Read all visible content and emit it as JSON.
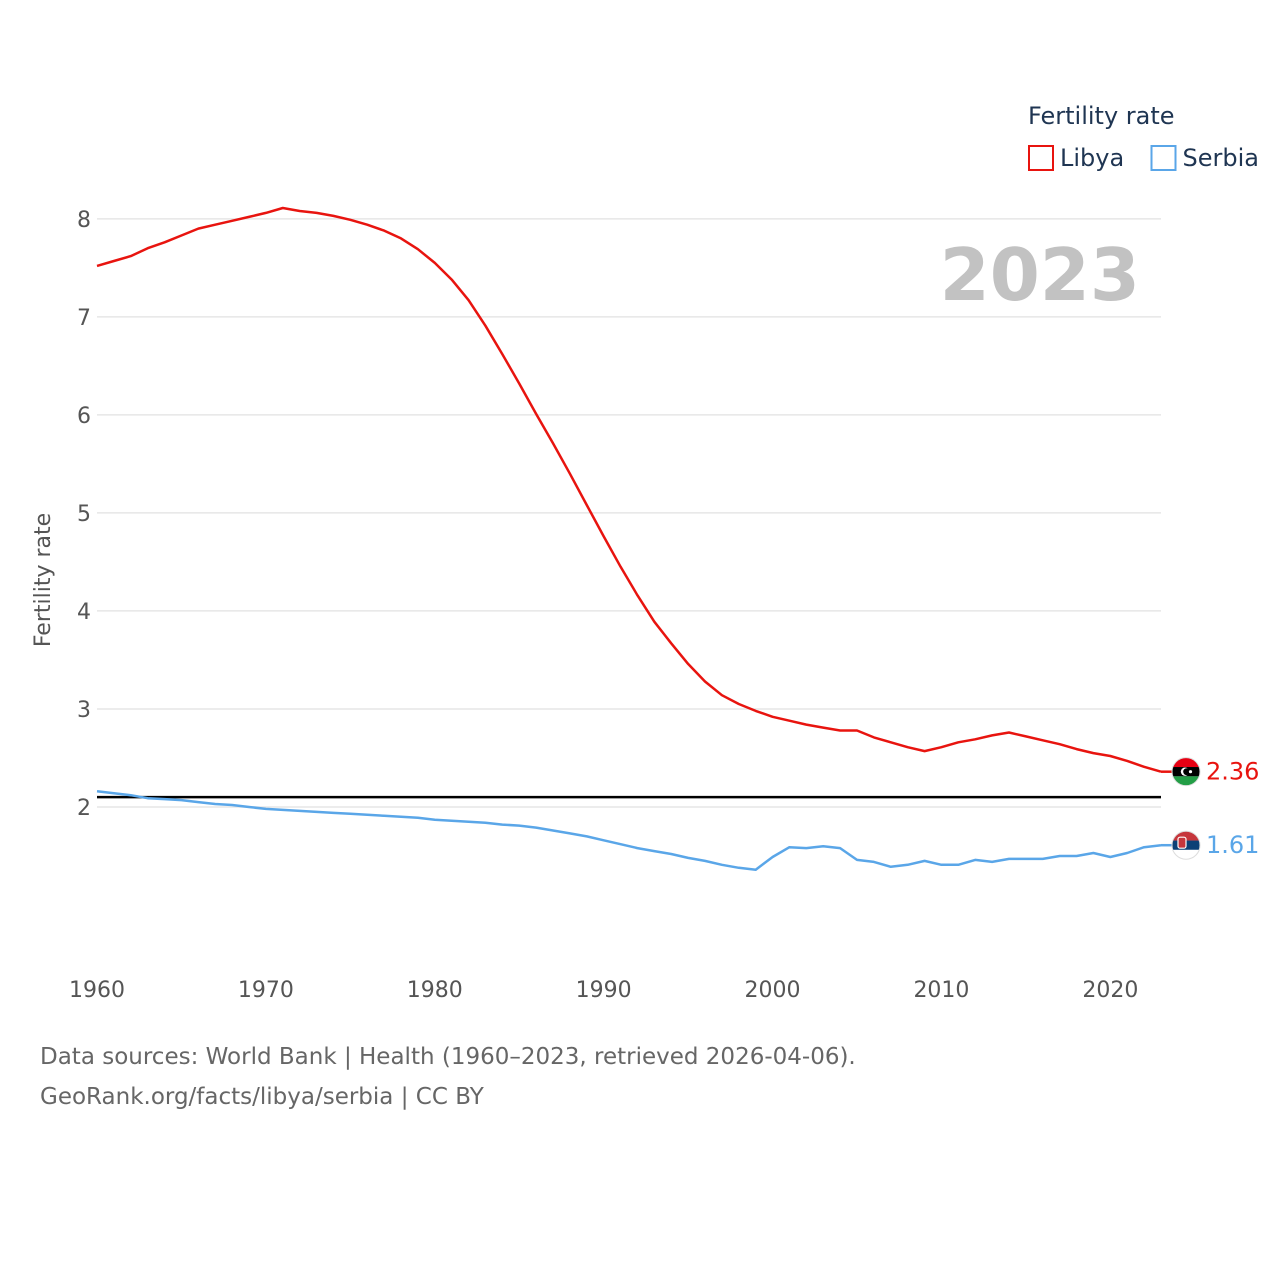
{
  "chart_data": {
    "type": "line",
    "title": "",
    "xlabel": "",
    "ylabel": "Fertility rate",
    "xlim": [
      1960,
      2023
    ],
    "ylim": [
      1.0,
      8.6
    ],
    "yticks": [
      2,
      3,
      4,
      5,
      6,
      7,
      8
    ],
    "xticks": [
      1960,
      1970,
      1980,
      1990,
      2000,
      2010,
      2020
    ],
    "current_year": "2023",
    "reference_line": 2.1,
    "legend": {
      "title": "Fertility rate",
      "position": "top-right"
    },
    "series": [
      {
        "name": "Libya",
        "color": "#e8140f",
        "end_label": "2.36",
        "x": [
          1960,
          1961,
          1962,
          1963,
          1964,
          1965,
          1966,
          1967,
          1968,
          1969,
          1970,
          1971,
          1972,
          1973,
          1974,
          1975,
          1976,
          1977,
          1978,
          1979,
          1980,
          1981,
          1982,
          1983,
          1984,
          1985,
          1986,
          1987,
          1988,
          1989,
          1990,
          1991,
          1992,
          1993,
          1994,
          1995,
          1996,
          1997,
          1998,
          1999,
          2000,
          2001,
          2002,
          2003,
          2004,
          2005,
          2006,
          2007,
          2008,
          2009,
          2010,
          2011,
          2012,
          2013,
          2014,
          2015,
          2016,
          2017,
          2018,
          2019,
          2020,
          2021,
          2022,
          2023
        ],
        "values": [
          7.52,
          7.57,
          7.62,
          7.7,
          7.76,
          7.83,
          7.9,
          7.94,
          7.98,
          8.02,
          8.06,
          8.11,
          8.08,
          8.06,
          8.03,
          7.99,
          7.94,
          7.88,
          7.8,
          7.69,
          7.55,
          7.38,
          7.17,
          6.91,
          6.62,
          6.32,
          6.01,
          5.71,
          5.4,
          5.08,
          4.76,
          4.45,
          4.16,
          3.89,
          3.67,
          3.46,
          3.28,
          3.14,
          3.05,
          2.98,
          2.92,
          2.88,
          2.84,
          2.81,
          2.78,
          2.78,
          2.71,
          2.66,
          2.61,
          2.57,
          2.61,
          2.66,
          2.69,
          2.73,
          2.76,
          2.72,
          2.68,
          2.64,
          2.59,
          2.55,
          2.52,
          2.47,
          2.41,
          2.36
        ]
      },
      {
        "name": "Serbia",
        "color": "#5aa6e8",
        "end_label": "1.61",
        "x": [
          1960,
          1961,
          1962,
          1963,
          1964,
          1965,
          1966,
          1967,
          1968,
          1969,
          1970,
          1971,
          1972,
          1973,
          1974,
          1975,
          1976,
          1977,
          1978,
          1979,
          1980,
          1981,
          1982,
          1983,
          1984,
          1985,
          1986,
          1987,
          1988,
          1989,
          1990,
          1991,
          1992,
          1993,
          1994,
          1995,
          1996,
          1997,
          1998,
          1999,
          2000,
          2001,
          2002,
          2003,
          2004,
          2005,
          2006,
          2007,
          2008,
          2009,
          2010,
          2011,
          2012,
          2013,
          2014,
          2015,
          2016,
          2017,
          2018,
          2019,
          2020,
          2021,
          2022,
          2023
        ],
        "values": [
          2.16,
          2.14,
          2.12,
          2.09,
          2.08,
          2.07,
          2.05,
          2.03,
          2.02,
          2.0,
          1.98,
          1.97,
          1.96,
          1.95,
          1.94,
          1.93,
          1.92,
          1.91,
          1.9,
          1.89,
          1.87,
          1.86,
          1.85,
          1.84,
          1.82,
          1.81,
          1.79,
          1.76,
          1.73,
          1.7,
          1.66,
          1.62,
          1.58,
          1.55,
          1.52,
          1.48,
          1.45,
          1.41,
          1.38,
          1.36,
          1.49,
          1.59,
          1.58,
          1.6,
          1.58,
          1.46,
          1.44,
          1.39,
          1.41,
          1.45,
          1.41,
          1.41,
          1.46,
          1.44,
          1.47,
          1.47,
          1.47,
          1.5,
          1.5,
          1.53,
          1.49,
          1.53,
          1.59,
          1.61
        ]
      }
    ]
  },
  "footer": {
    "line1": "Data sources: World Bank | Health (1960–2023, retrieved 2026-04-06).",
    "line2": "GeoRank.org/facts/libya/serbia | CC BY"
  }
}
